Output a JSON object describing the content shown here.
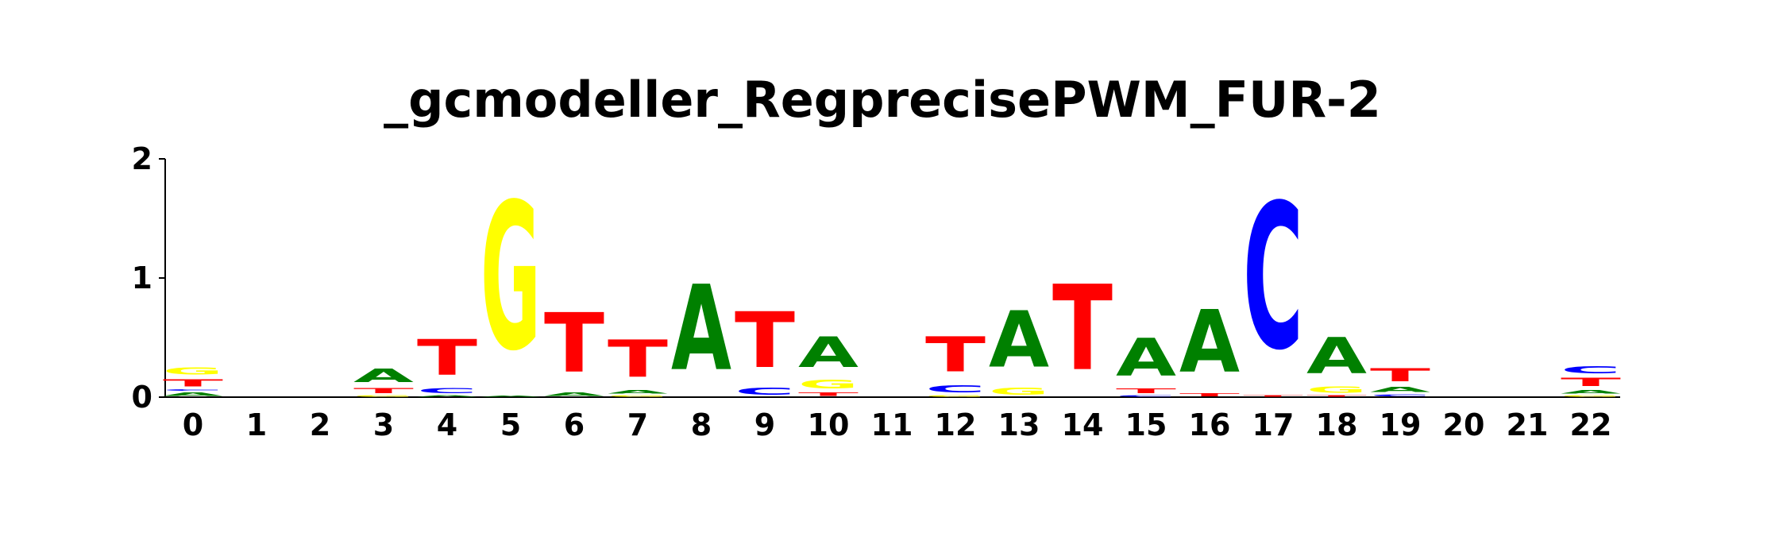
{
  "chart_data": {
    "type": "sequence-logo",
    "title": "_gcmodeller_RegprecisePWM_FUR-2",
    "ylim": [
      0,
      2
    ],
    "y_ticks": [
      "0",
      "1",
      "2"
    ],
    "positions": [
      "0",
      "1",
      "2",
      "3",
      "4",
      "5",
      "6",
      "7",
      "8",
      "9",
      "10",
      "11",
      "12",
      "13",
      "14",
      "15",
      "16",
      "17",
      "18",
      "19",
      "20",
      "21",
      "22"
    ],
    "colors": {
      "A": "#008000",
      "C": "#0000ff",
      "G": "#ffff00",
      "T": "#ff0000"
    },
    "stacks": [
      [
        {
          "b": "A",
          "h": 0.05
        },
        {
          "b": "C",
          "h": 0.02
        },
        {
          "b": "T",
          "h": 0.1
        },
        {
          "b": "G",
          "h": 0.1
        }
      ],
      [],
      [],
      [
        {
          "b": "G",
          "h": 0.02
        },
        {
          "b": "T",
          "h": 0.07
        },
        {
          "b": "A",
          "h": 0.18
        }
      ],
      [
        {
          "b": "A",
          "h": 0.02
        },
        {
          "b": "C",
          "h": 0.07
        },
        {
          "b": "T",
          "h": 0.48
        }
      ],
      [
        {
          "b": "A",
          "h": 0.01
        },
        {
          "b": "G",
          "h": 1.98
        }
      ],
      [
        {
          "b": "A",
          "h": 0.05
        },
        {
          "b": "T",
          "h": 0.8
        }
      ],
      [
        {
          "b": "G",
          "h": 0.02
        },
        {
          "b": "A",
          "h": 0.05
        },
        {
          "b": "T",
          "h": 0.5
        }
      ],
      [
        {
          "b": "A",
          "h": 1.15
        }
      ],
      [
        {
          "b": "C",
          "h": 0.1
        },
        {
          "b": "T",
          "h": 0.75
        }
      ],
      [
        {
          "b": "T",
          "h": 0.05
        },
        {
          "b": "G",
          "h": 0.12
        },
        {
          "b": "A",
          "h": 0.41
        }
      ],
      [],
      [
        {
          "b": "G",
          "h": 0.02
        },
        {
          "b": "C",
          "h": 0.1
        },
        {
          "b": "T",
          "h": 0.47
        }
      ],
      [
        {
          "b": "G",
          "h": 0.1
        },
        {
          "b": "A",
          "h": 0.76
        }
      ],
      [
        {
          "b": "T",
          "h": 1.15
        }
      ],
      [
        {
          "b": "C",
          "h": 0.02
        },
        {
          "b": "T",
          "h": 0.06
        },
        {
          "b": "A",
          "h": 0.51
        }
      ],
      [
        {
          "b": "T",
          "h": 0.04
        },
        {
          "b": "A",
          "h": 0.84
        }
      ],
      [
        {
          "b": "T",
          "h": 0.02
        },
        {
          "b": "C",
          "h": 1.96
        }
      ],
      [
        {
          "b": "T",
          "h": 0.02
        },
        {
          "b": "G",
          "h": 0.08
        },
        {
          "b": "A",
          "h": 0.49
        }
      ],
      [
        {
          "b": "C",
          "h": 0.03
        },
        {
          "b": "A",
          "h": 0.07
        },
        {
          "b": "T",
          "h": 0.17
        }
      ],
      [],
      [],
      [
        {
          "b": "G",
          "h": 0.02
        },
        {
          "b": "A",
          "h": 0.05
        },
        {
          "b": "T",
          "h": 0.11
        },
        {
          "b": "C",
          "h": 0.1
        }
      ]
    ]
  }
}
